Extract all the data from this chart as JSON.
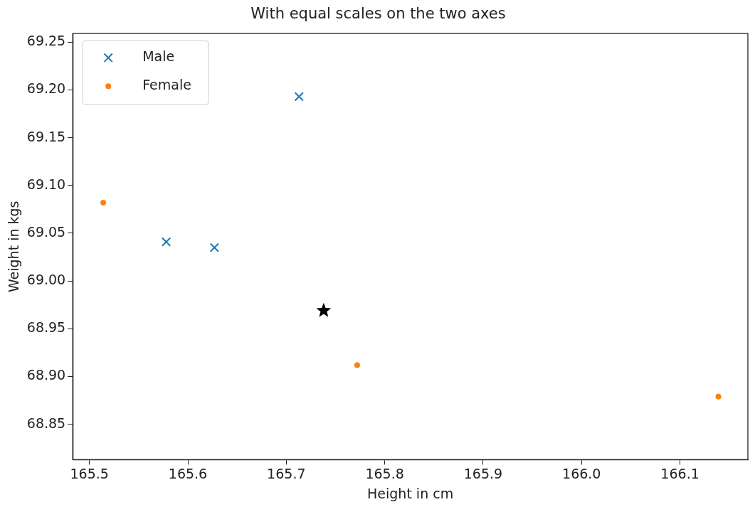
{
  "chart_data": {
    "type": "scatter",
    "title": "With equal scales on the two axes",
    "xlabel": "Height in cm",
    "ylabel": "Weight in kgs",
    "series": [
      {
        "name": "Male",
        "color": "#1f77b4",
        "marker": "cross",
        "x": [
          165.713,
          165.578,
          165.627
        ],
        "values": [
          69.193,
          69.041,
          69.035
        ]
      },
      {
        "name": "Female",
        "color": "#ff7f0e",
        "marker": "circle",
        "x": [
          165.514,
          165.772,
          166.139
        ],
        "values": [
          69.082,
          68.912,
          68.879
        ]
      },
      {
        "color": "#000000",
        "marker": "star",
        "x": [
          165.738
        ],
        "values": [
          68.969
        ]
      }
    ],
    "xlim": [
      165.483,
      166.169
    ],
    "ylim": [
      68.813,
      69.259
    ],
    "xticks": [
      165.5,
      165.6,
      165.7,
      165.8,
      165.9,
      {
        "value": 166.0,
        "label": "166.0"
      },
      166.1
    ],
    "yticks": [
      68.85,
      {
        "value": 68.9,
        "label": "68.90"
      },
      68.95,
      {
        "value": 69.0,
        "label": "69.00"
      },
      69.05,
      {
        "value": 69.1,
        "label": "69.10"
      },
      69.15,
      {
        "value": 69.2,
        "label": "69.20"
      },
      69.25
    ],
    "legend": "top left",
    "grid": false
  }
}
